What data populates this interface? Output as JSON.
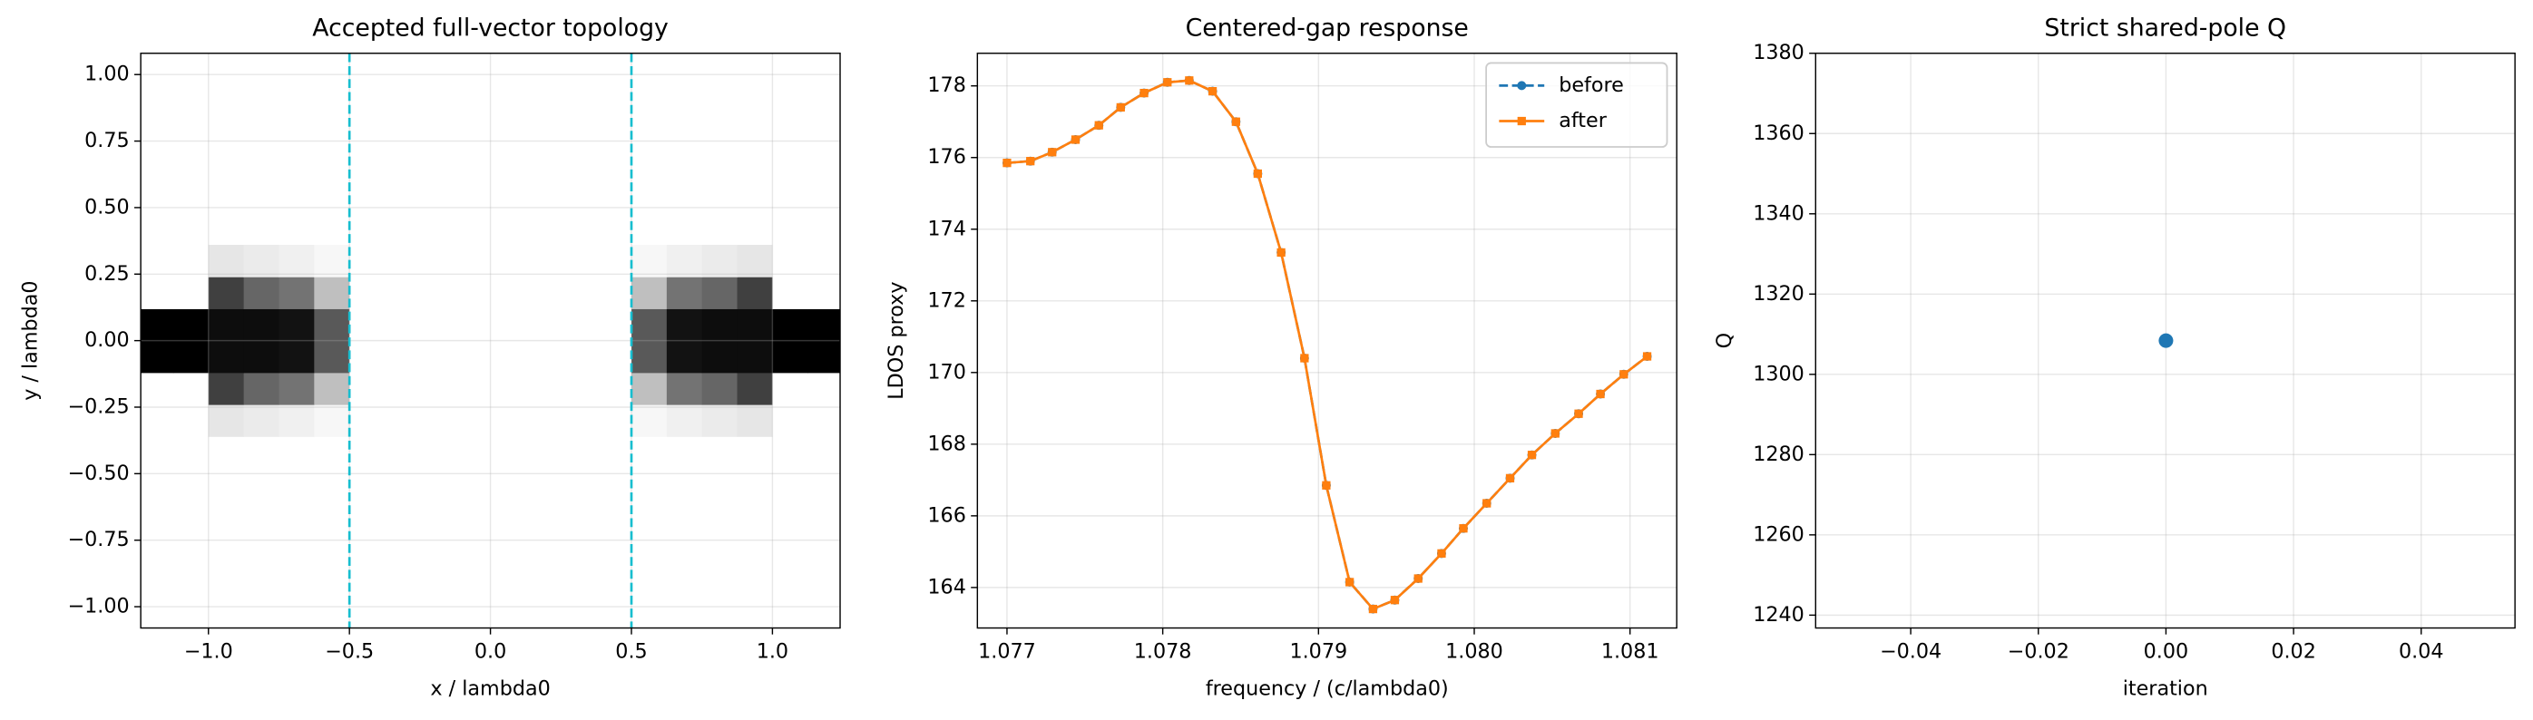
{
  "chart_data": [
    {
      "type": "heatmap",
      "title": "Accepted full-vector topology",
      "xlabel": "x / lambda0",
      "ylabel": "y / lambda0",
      "xlim": [
        -1.24,
        1.24
      ],
      "ylim": [
        -1.08,
        1.08
      ],
      "xticks": [
        {
          "value": -1.0,
          "label": "−1.0"
        },
        {
          "value": -0.5,
          "label": "−0.5"
        },
        {
          "value": 0,
          "label": "0.0"
        },
        0.5,
        {
          "value": 1.0,
          "label": "1.0"
        }
      ],
      "yticks": [
        {
          "value": -1.0,
          "label": "−1.00"
        },
        {
          "value": -0.75,
          "label": "−0.75"
        },
        {
          "value": -0.5,
          "label": "−0.50"
        },
        {
          "value": -0.25,
          "label": "−0.25"
        },
        {
          "value": 0,
          "label": "0.00"
        },
        0.25,
        {
          "value": 0.5,
          "label": "0.50"
        },
        0.75,
        {
          "value": 1.0,
          "label": "1.00"
        }
      ],
      "grid": true,
      "cmap": "Greys",
      "x_edges": [
        -1.25,
        -1.125,
        -1.0,
        -0.875,
        -0.75,
        -0.625,
        -0.5,
        -0.375,
        -0.25,
        -0.125,
        0,
        0.125,
        0.25,
        0.375,
        0.5,
        0.625,
        0.75,
        0.875,
        1.0,
        1.125,
        1.25
      ],
      "y_edges": [
        -0.36,
        -0.24,
        -0.12,
        0,
        0.12,
        0.24,
        0.36
      ],
      "z": [
        [
          0,
          0,
          0.1,
          0.08,
          0.06,
          0.03,
          0,
          0,
          0,
          0,
          0,
          0,
          0,
          0,
          0.03,
          0.06,
          0.08,
          0.1,
          0,
          0
        ],
        [
          0,
          0,
          0.75,
          0.6,
          0.55,
          0.25,
          0,
          0,
          0,
          0,
          0,
          0,
          0,
          0,
          0.25,
          0.55,
          0.6,
          0.75,
          0,
          0
        ],
        [
          1,
          1,
          0.95,
          0.95,
          0.93,
          0.65,
          0,
          0,
          0,
          0,
          0,
          0,
          0,
          0,
          0.65,
          0.93,
          0.95,
          0.95,
          1,
          1
        ],
        [
          1,
          1,
          0.95,
          0.95,
          0.93,
          0.65,
          0,
          0,
          0,
          0,
          0,
          0,
          0,
          0,
          0.65,
          0.93,
          0.95,
          0.95,
          1,
          1
        ],
        [
          0,
          0,
          0.75,
          0.6,
          0.55,
          0.25,
          0,
          0,
          0,
          0,
          0,
          0,
          0,
          0,
          0.25,
          0.55,
          0.6,
          0.75,
          0,
          0
        ],
        [
          0,
          0,
          0.1,
          0.08,
          0.06,
          0.03,
          0,
          0,
          0,
          0,
          0,
          0,
          0,
          0,
          0.03,
          0.06,
          0.08,
          0.1,
          0,
          0
        ]
      ],
      "vlines": [
        -0.5,
        0.5
      ],
      "vline_color": "#17becf"
    },
    {
      "type": "line",
      "title": "Centered-gap response",
      "xlabel": "frequency / (c/lambda0)",
      "ylabel": "LDOS proxy",
      "xlim": [
        1.07681,
        1.0813
      ],
      "ylim": [
        162.87,
        178.91
      ],
      "xticks": [
        1.077,
        1.078,
        1.079,
        {
          "value": 1.08,
          "label": "1.080"
        },
        1.081
      ],
      "yticks": [
        164,
        166,
        168,
        170,
        172,
        174,
        176,
        178
      ],
      "grid": true,
      "legend": "upper right",
      "x": [
        1.077,
        1.07715,
        1.07729,
        1.07744,
        1.07759,
        1.07773,
        1.07788,
        1.07803,
        1.07817,
        1.07832,
        1.07847,
        1.07861,
        1.07876,
        1.07891,
        1.07905,
        1.0792,
        1.07935,
        1.07949,
        1.07964,
        1.07979,
        1.07993,
        1.08008,
        1.08023,
        1.08037,
        1.08052,
        1.08067,
        1.08081,
        1.08096,
        1.08111
      ],
      "series": [
        {
          "name": "before",
          "color": "#1f77b4",
          "linestyle": "dashed",
          "marker": "circle",
          "values": [
            175.85,
            175.9,
            176.15,
            176.5,
            176.9,
            177.4,
            177.8,
            178.1,
            178.15,
            177.85,
            177.0,
            175.55,
            173.35,
            170.4,
            166.85,
            164.15,
            163.4,
            163.65,
            164.25,
            164.95,
            165.65,
            166.35,
            167.05,
            167.7,
            168.3,
            168.85,
            169.4,
            169.95,
            170.45
          ]
        },
        {
          "name": "after",
          "color": "#ff7f0e",
          "linestyle": "solid",
          "marker": "square",
          "values": [
            175.85,
            175.9,
            176.15,
            176.5,
            176.9,
            177.4,
            177.8,
            178.1,
            178.15,
            177.85,
            177.0,
            175.55,
            173.35,
            170.4,
            166.85,
            164.15,
            163.4,
            163.65,
            164.25,
            164.95,
            165.65,
            166.35,
            167.05,
            167.7,
            168.3,
            168.85,
            169.4,
            169.95,
            170.45
          ]
        }
      ]
    },
    {
      "type": "scatter",
      "title": "Strict shared-pole Q",
      "xlabel": "iteration",
      "ylabel": "Q",
      "xlim": [
        -0.0549,
        0.0547
      ],
      "ylim": [
        1236.8,
        1380.0
      ],
      "xticks": [
        {
          "value": -0.04,
          "label": "−0.04"
        },
        {
          "value": -0.02,
          "label": "−0.02"
        },
        {
          "value": 0,
          "label": "0.00"
        },
        0.02,
        0.04
      ],
      "yticks": [
        1240,
        1260,
        1280,
        1300,
        1320,
        1340,
        1360,
        1380
      ],
      "grid": true,
      "color": "#1f77b4",
      "x": [
        0
      ],
      "values": [
        1308.4
      ]
    }
  ]
}
